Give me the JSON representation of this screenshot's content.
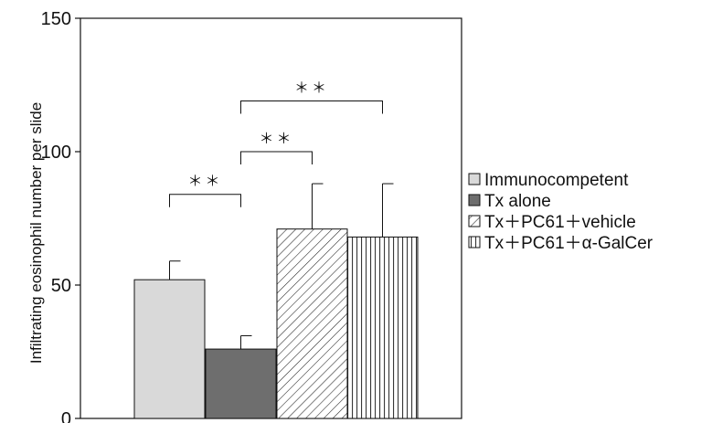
{
  "chart_data": {
    "type": "bar",
    "title": "",
    "xlabel": "",
    "ylabel": "Infiltrating eosinophil number per slide",
    "ylim": [
      0,
      150
    ],
    "yticks": [
      0,
      50,
      100,
      150
    ],
    "grid": false,
    "legend_position": "right",
    "series": [
      {
        "name": "Immunocompetent",
        "value": 52,
        "error": 7,
        "color": "#d9d9d9",
        "pattern": "solid"
      },
      {
        "name": "Tx alone",
        "value": 26,
        "error": 5,
        "color": "#6e6e6e",
        "pattern": "solid"
      },
      {
        "name": "Tx＋PC61＋vehicle",
        "value": 71,
        "error": 17,
        "color": "#ffffff",
        "pattern": "diagonal-hatch"
      },
      {
        "name": "Tx＋PC61＋α-GalCer",
        "value": 68,
        "error": 20,
        "color": "#ffffff",
        "pattern": "vertical-hatch"
      }
    ],
    "significance": [
      {
        "from": 0,
        "to": 1,
        "label": "＊＊",
        "y": 84
      },
      {
        "from": 1,
        "to": 2,
        "label": "＊＊",
        "y": 100
      },
      {
        "from": 1,
        "to": 3,
        "label": "＊＊",
        "y": 119
      }
    ]
  }
}
